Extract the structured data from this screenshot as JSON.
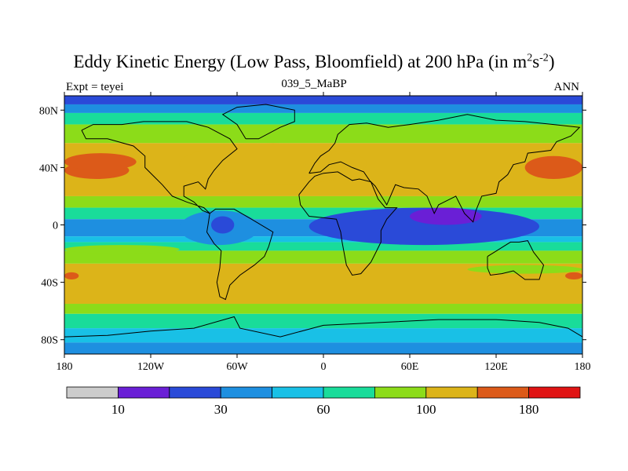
{
  "title_main": "Eddy Kinetic Energy (Low Pass, Bloomfield) at 200 hPa (in m",
  "title_sup1": "2",
  "title_mid": "s",
  "title_sup2": "-2",
  "title_end": ")",
  "left_label": "Expt = teyei",
  "center_label": "039_5_MaBP",
  "right_label": "ANN",
  "colors": {
    "levels": [
      "#cccccc",
      "#6a1fd6",
      "#2a4ad8",
      "#1e8fe0",
      "#19c0e6",
      "#19dc9a",
      "#8cdc19",
      "#dcb419",
      "#dc5a19",
      "#e01414"
    ],
    "land": "#000000"
  },
  "chart_data": {
    "type": "heatmap",
    "projection": "cylindrical-equidistant",
    "xlim": [
      -180,
      180
    ],
    "ylim": [
      -90,
      90
    ],
    "x_ticks": [
      {
        "value": -180,
        "label": "180"
      },
      {
        "value": -120,
        "label": "120W"
      },
      {
        "value": -60,
        "label": "60W"
      },
      {
        "value": 0,
        "label": "0"
      },
      {
        "value": 60,
        "label": "60E"
      },
      {
        "value": 120,
        "label": "120E"
      },
      {
        "value": 180,
        "label": "180"
      }
    ],
    "y_ticks": [
      {
        "value": 80,
        "label": "80N"
      },
      {
        "value": 40,
        "label": "40N"
      },
      {
        "value": 0,
        "label": "0"
      },
      {
        "value": -40,
        "label": "40S"
      },
      {
        "value": -80,
        "label": "80S"
      }
    ],
    "colorbar": {
      "levels": [
        10,
        20,
        30,
        40,
        60,
        80,
        100,
        140,
        180
      ],
      "tick_labels": [
        {
          "index": 1,
          "label": "10"
        },
        {
          "index": 3,
          "label": "30"
        },
        {
          "index": 5,
          "label": "60"
        },
        {
          "index": 7,
          "label": "100"
        },
        {
          "index": 9,
          "label": "180"
        }
      ]
    },
    "zonal_bands": [
      {
        "lat": [
          84,
          90
        ],
        "level": 2
      },
      {
        "lat": [
          78,
          84
        ],
        "level": 3
      },
      {
        "lat": [
          70,
          78
        ],
        "level": 5
      },
      {
        "lat": [
          57,
          70
        ],
        "level": 6
      },
      {
        "lat": [
          20,
          57
        ],
        "level": 7
      },
      {
        "lat": [
          12,
          20
        ],
        "level": 6
      },
      {
        "lat": [
          4,
          12
        ],
        "level": 5
      },
      {
        "lat": [
          -8,
          4
        ],
        "level": 3
      },
      {
        "lat": [
          -12,
          -8
        ],
        "level": 4
      },
      {
        "lat": [
          -18,
          -12
        ],
        "level": 5
      },
      {
        "lat": [
          -27,
          -18
        ],
        "level": 6
      },
      {
        "lat": [
          -55,
          -27
        ],
        "level": 7
      },
      {
        "lat": [
          -62,
          -55
        ],
        "level": 6
      },
      {
        "lat": [
          -72,
          -62
        ],
        "level": 5
      },
      {
        "lat": [
          -82,
          -72
        ],
        "level": 4
      },
      {
        "lat": [
          -90,
          -82
        ],
        "level": 3
      }
    ],
    "regions": [
      {
        "name": "n-atlantic-jet",
        "lon": [
          -100,
          30
        ],
        "lat": [
          28,
          57
        ],
        "level": 7
      },
      {
        "name": "n-pacific-max-w",
        "lon": [
          -180,
          -135
        ],
        "lat": [
          32,
          44
        ],
        "level": 8
      },
      {
        "name": "n-pacific-max-w2",
        "lon": [
          -180,
          -130
        ],
        "lat": [
          38,
          50
        ],
        "level": 8
      },
      {
        "name": "n-pacific-max-e",
        "lon": [
          140,
          180
        ],
        "lat": [
          32,
          48
        ],
        "level": 8
      },
      {
        "name": "s-hem-max",
        "lon": [
          -180,
          -170
        ],
        "lat": [
          -38,
          -33
        ],
        "level": 8
      },
      {
        "name": "s-hem-max-e",
        "lon": [
          168,
          180
        ],
        "lat": [
          -38,
          -33
        ],
        "level": 8
      },
      {
        "name": "americas-min",
        "lon": [
          -100,
          -45
        ],
        "lat": [
          -14,
          10
        ],
        "level": 3
      },
      {
        "name": "americas-core",
        "lon": [
          -78,
          -62
        ],
        "lat": [
          -6,
          6
        ],
        "level": 2
      },
      {
        "name": "africa-asia-min",
        "lon": [
          -10,
          150
        ],
        "lat": [
          -14,
          12
        ],
        "level": 2
      },
      {
        "name": "indian-core",
        "lon": [
          60,
          110
        ],
        "lat": [
          0,
          12
        ],
        "level": 1
      },
      {
        "name": "s-pac-green",
        "lon": [
          -180,
          -100
        ],
        "lat": [
          -20,
          -14
        ],
        "level": 6
      },
      {
        "name": "australia-green",
        "lon": [
          100,
          180
        ],
        "lat": [
          -34,
          -28
        ],
        "level": 6
      }
    ]
  }
}
